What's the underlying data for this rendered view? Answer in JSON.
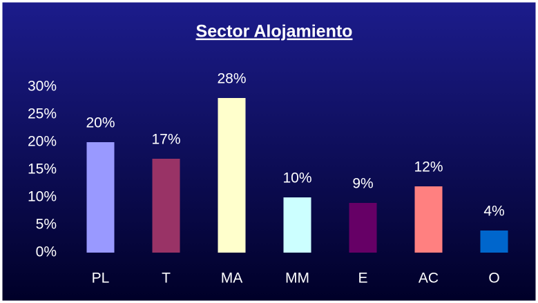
{
  "chart_data": {
    "type": "bar",
    "title": "Sector Alojamiento",
    "categories": [
      "PL",
      "T",
      "MA",
      "MM",
      "E",
      "AC",
      "O"
    ],
    "values": [
      20,
      17,
      28,
      10,
      9,
      12,
      4
    ],
    "value_labels": [
      "20%",
      "17%",
      "28%",
      "10%",
      "9%",
      "12%",
      "4%"
    ],
    "colors": [
      "#9999ff",
      "#993366",
      "#ffffcc",
      "#ccffff",
      "#660066",
      "#ff8080",
      "#0066cc"
    ],
    "ylim": [
      0,
      30
    ],
    "yticks": [
      {
        "value": 0,
        "label": "0%"
      },
      {
        "value": 5,
        "label": "5%"
      },
      {
        "value": 10,
        "label": "10%"
      },
      {
        "value": 15,
        "label": "15%"
      },
      {
        "value": 20,
        "label": "20%"
      },
      {
        "value": 25,
        "label": "25%"
      },
      {
        "value": 30,
        "label": "30%"
      }
    ],
    "grid": false
  }
}
